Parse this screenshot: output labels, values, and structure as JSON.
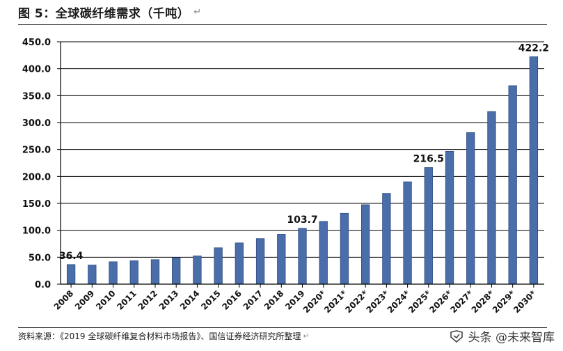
{
  "figure": {
    "title": "图 5：全球碳纤维需求（千吨）",
    "return_mark": "↵",
    "source": "资料来源：《2019 全球碳纤维复合材料市场报告》、国信证券经济研究所整理",
    "watermark": "头条 @未来智库"
  },
  "chart_data": {
    "type": "bar",
    "title": "",
    "xlabel": "",
    "ylabel": "",
    "categories": [
      "2008",
      "2009",
      "2010",
      "2011",
      "2012",
      "2013",
      "2014",
      "2015",
      "2016",
      "2017",
      "2018",
      "2019",
      "2020*",
      "2021*",
      "2022*",
      "2023*",
      "2024*",
      "2025*",
      "2026*",
      "2027*",
      "2028*",
      "2029*",
      "2030*"
    ],
    "values": [
      36.4,
      35.5,
      41.5,
      43.5,
      45.5,
      49.0,
      52.5,
      67.5,
      76.5,
      84.5,
      92.5,
      103.7,
      116.5,
      131.5,
      147.5,
      168.5,
      190.0,
      216.5,
      246.5,
      281.5,
      320.5,
      368.5,
      422.2
    ],
    "data_labels": [
      {
        "category": "2008",
        "text": "36.4"
      },
      {
        "category": "2019",
        "text": "103.7"
      },
      {
        "category": "2025*",
        "text": "216.5"
      },
      {
        "category": "2030*",
        "text": "422.2"
      }
    ],
    "yticks": [
      "0.0",
      "50.0",
      "100.0",
      "150.0",
      "200.0",
      "250.0",
      "300.0",
      "350.0",
      "400.0",
      "450.0"
    ],
    "ylim": [
      0,
      450
    ],
    "grid": true,
    "legend": "none",
    "colors": {
      "bar": "#4a6ea9",
      "bar_edge": "#2f4d82",
      "grid": "#000000",
      "axis": "#000000"
    }
  }
}
